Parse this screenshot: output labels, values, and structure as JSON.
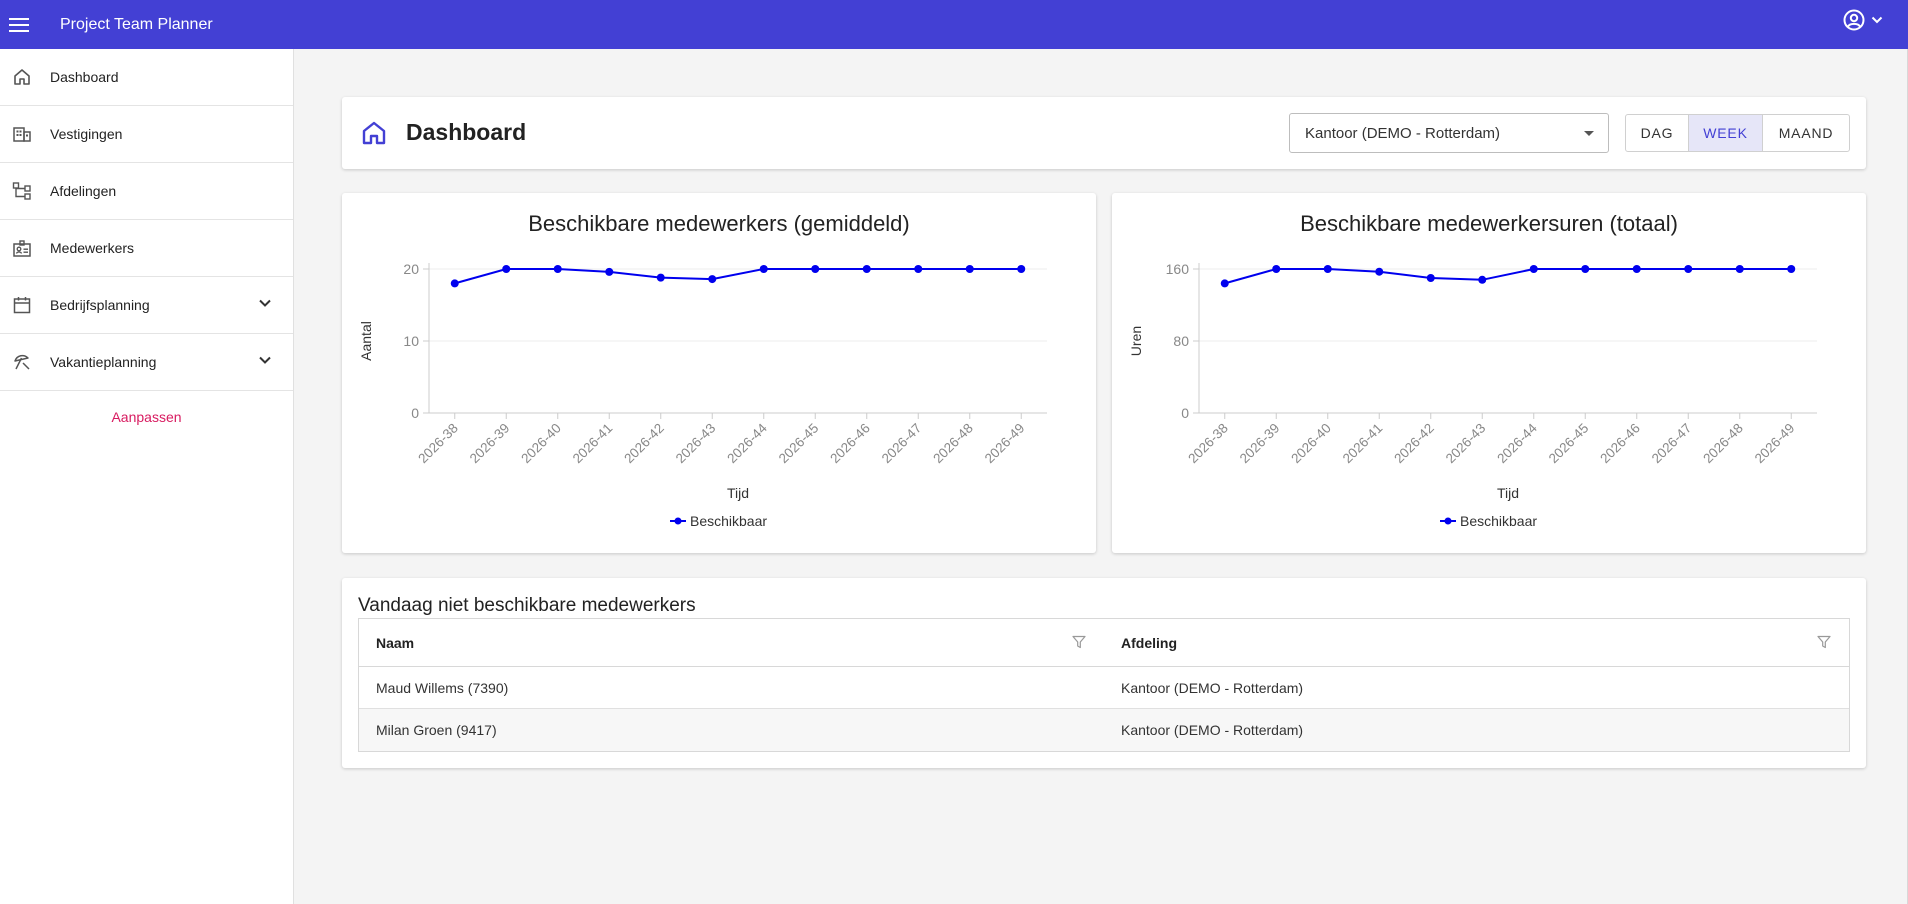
{
  "app": {
    "title": "Project Team Planner"
  },
  "sidebar": {
    "items": [
      {
        "label": "Dashboard",
        "icon": "home-icon"
      },
      {
        "label": "Vestigingen",
        "icon": "building-icon"
      },
      {
        "label": "Afdelingen",
        "icon": "org-chart-icon"
      },
      {
        "label": "Medewerkers",
        "icon": "badge-icon"
      },
      {
        "label": "Bedrijfsplanning",
        "icon": "calendar-icon",
        "expandable": true
      },
      {
        "label": "Vakantieplanning",
        "icon": "beach-umbrella-icon",
        "expandable": true
      }
    ],
    "customize_label": "Aanpassen"
  },
  "header": {
    "title": "Dashboard",
    "location_select": {
      "value": "Kantoor (DEMO - Rotterdam)"
    },
    "period_toggle": {
      "options": [
        "DAG",
        "WEEK",
        "MAAND"
      ],
      "selected": "WEEK"
    }
  },
  "colors": {
    "primary": "#4340d4",
    "series": "#0000ee",
    "accent": "#d81b60"
  },
  "chart_data": [
    {
      "type": "line",
      "title": "Beschikbare medewerkers (gemiddeld)",
      "xlabel": "Tijd",
      "ylabel": "Aantal",
      "ylim": [
        0,
        20
      ],
      "yticks": [
        0,
        10,
        20
      ],
      "legend": "bottom",
      "grid": true,
      "categories": [
        "2026-38",
        "2026-39",
        "2026-40",
        "2026-41",
        "2026-42",
        "2026-43",
        "2026-44",
        "2026-45",
        "2026-46",
        "2026-47",
        "2026-48",
        "2026-49"
      ],
      "series": [
        {
          "name": "Beschikbaar",
          "values": [
            18,
            20,
            20,
            19.6,
            18.8,
            18.6,
            20,
            20,
            20,
            20,
            20,
            20
          ]
        }
      ]
    },
    {
      "type": "line",
      "title": "Beschikbare medewerkersuren (totaal)",
      "xlabel": "Tijd",
      "ylabel": "Uren",
      "ylim": [
        0,
        160
      ],
      "yticks": [
        0,
        80,
        160
      ],
      "legend": "bottom",
      "grid": true,
      "categories": [
        "2026-38",
        "2026-39",
        "2026-40",
        "2026-41",
        "2026-42",
        "2026-43",
        "2026-44",
        "2026-45",
        "2026-46",
        "2026-47",
        "2026-48",
        "2026-49"
      ],
      "series": [
        {
          "name": "Beschikbaar",
          "values": [
            144,
            160,
            160,
            157,
            150,
            148,
            160,
            160,
            160,
            160,
            160,
            160
          ]
        }
      ]
    }
  ],
  "unavailable": {
    "title": "Vandaag niet beschikbare medewerkers",
    "columns": [
      "Naam",
      "Afdeling"
    ],
    "rows": [
      [
        "Maud Willems (7390)",
        "Kantoor (DEMO - Rotterdam)"
      ],
      [
        "Milan Groen (9417)",
        "Kantoor (DEMO - Rotterdam)"
      ]
    ]
  }
}
